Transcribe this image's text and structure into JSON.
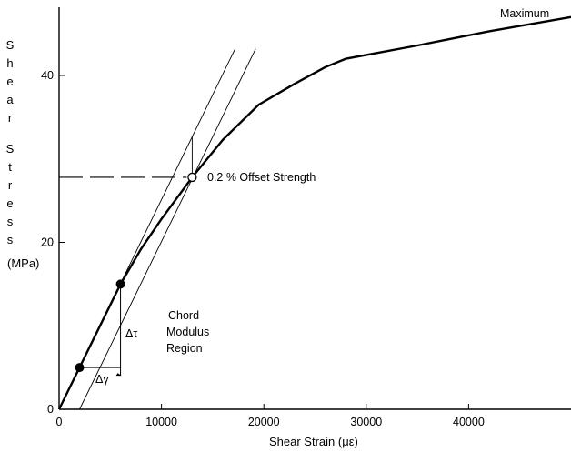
{
  "chart_data": {
    "type": "line",
    "xlabel": "Shear Strain (με)",
    "ylabel_words": [
      "Shear",
      "Stress"
    ],
    "ylabel_unit": "(MPa)",
    "xlim": [
      0,
      50000
    ],
    "ylim": [
      0,
      50
    ],
    "x_ticks": [
      0,
      10000,
      20000,
      30000,
      40000
    ],
    "x_tick_labels": [
      "0",
      "10000",
      "20000",
      "30000",
      "40000"
    ],
    "y_ticks": [
      0,
      20,
      40
    ],
    "y_tick_labels": [
      "0",
      "20",
      "40"
    ],
    "grid": false,
    "series": [
      {
        "x": [
          0,
          2000,
          4000,
          6000,
          8000,
          10000,
          13000,
          16000,
          19500,
          23000,
          26000,
          28000,
          35000,
          42000,
          50000
        ],
        "y": [
          0,
          5,
          10,
          15,
          19.2,
          22.8,
          27.8,
          32.3,
          36.5,
          39,
          41,
          42,
          43.6,
          45.3,
          47
        ]
      }
    ],
    "reference_lines": [
      {
        "x1": 0,
        "y1": 0,
        "x2": 17200,
        "y2": 43.2,
        "style": "thin"
      },
      {
        "x1": 2000,
        "y1": 0,
        "x2": 19200,
        "y2": 43.2,
        "style": "thin"
      }
    ],
    "offset_marker_line": {
      "x": 13000,
      "y1": 27.8,
      "y2": 32.7
    },
    "hline_dashed": {
      "y": 27.8,
      "x_from": 0,
      "x_to": 13000
    },
    "points": [
      {
        "x": 2000,
        "y": 5,
        "style": "filled"
      },
      {
        "x": 6000,
        "y": 15,
        "style": "filled"
      },
      {
        "x": 13000,
        "y": 27.8,
        "style": "open"
      }
    ],
    "delta_tau_bracket": {
      "x": 6000,
      "y_from": 15,
      "y_to": 5
    },
    "delta_gamma_bracket": {
      "y": 5,
      "x_from": 2000,
      "x_to": 6000
    },
    "annotations": {
      "maximum": "Maximum",
      "offset_strength": "0.2 % Offset Strength",
      "chord_line1": "Chord",
      "chord_line2": "Modulus",
      "chord_line3": "Region",
      "delta_tau": "Δτ",
      "delta_gamma": "Δγ"
    }
  }
}
